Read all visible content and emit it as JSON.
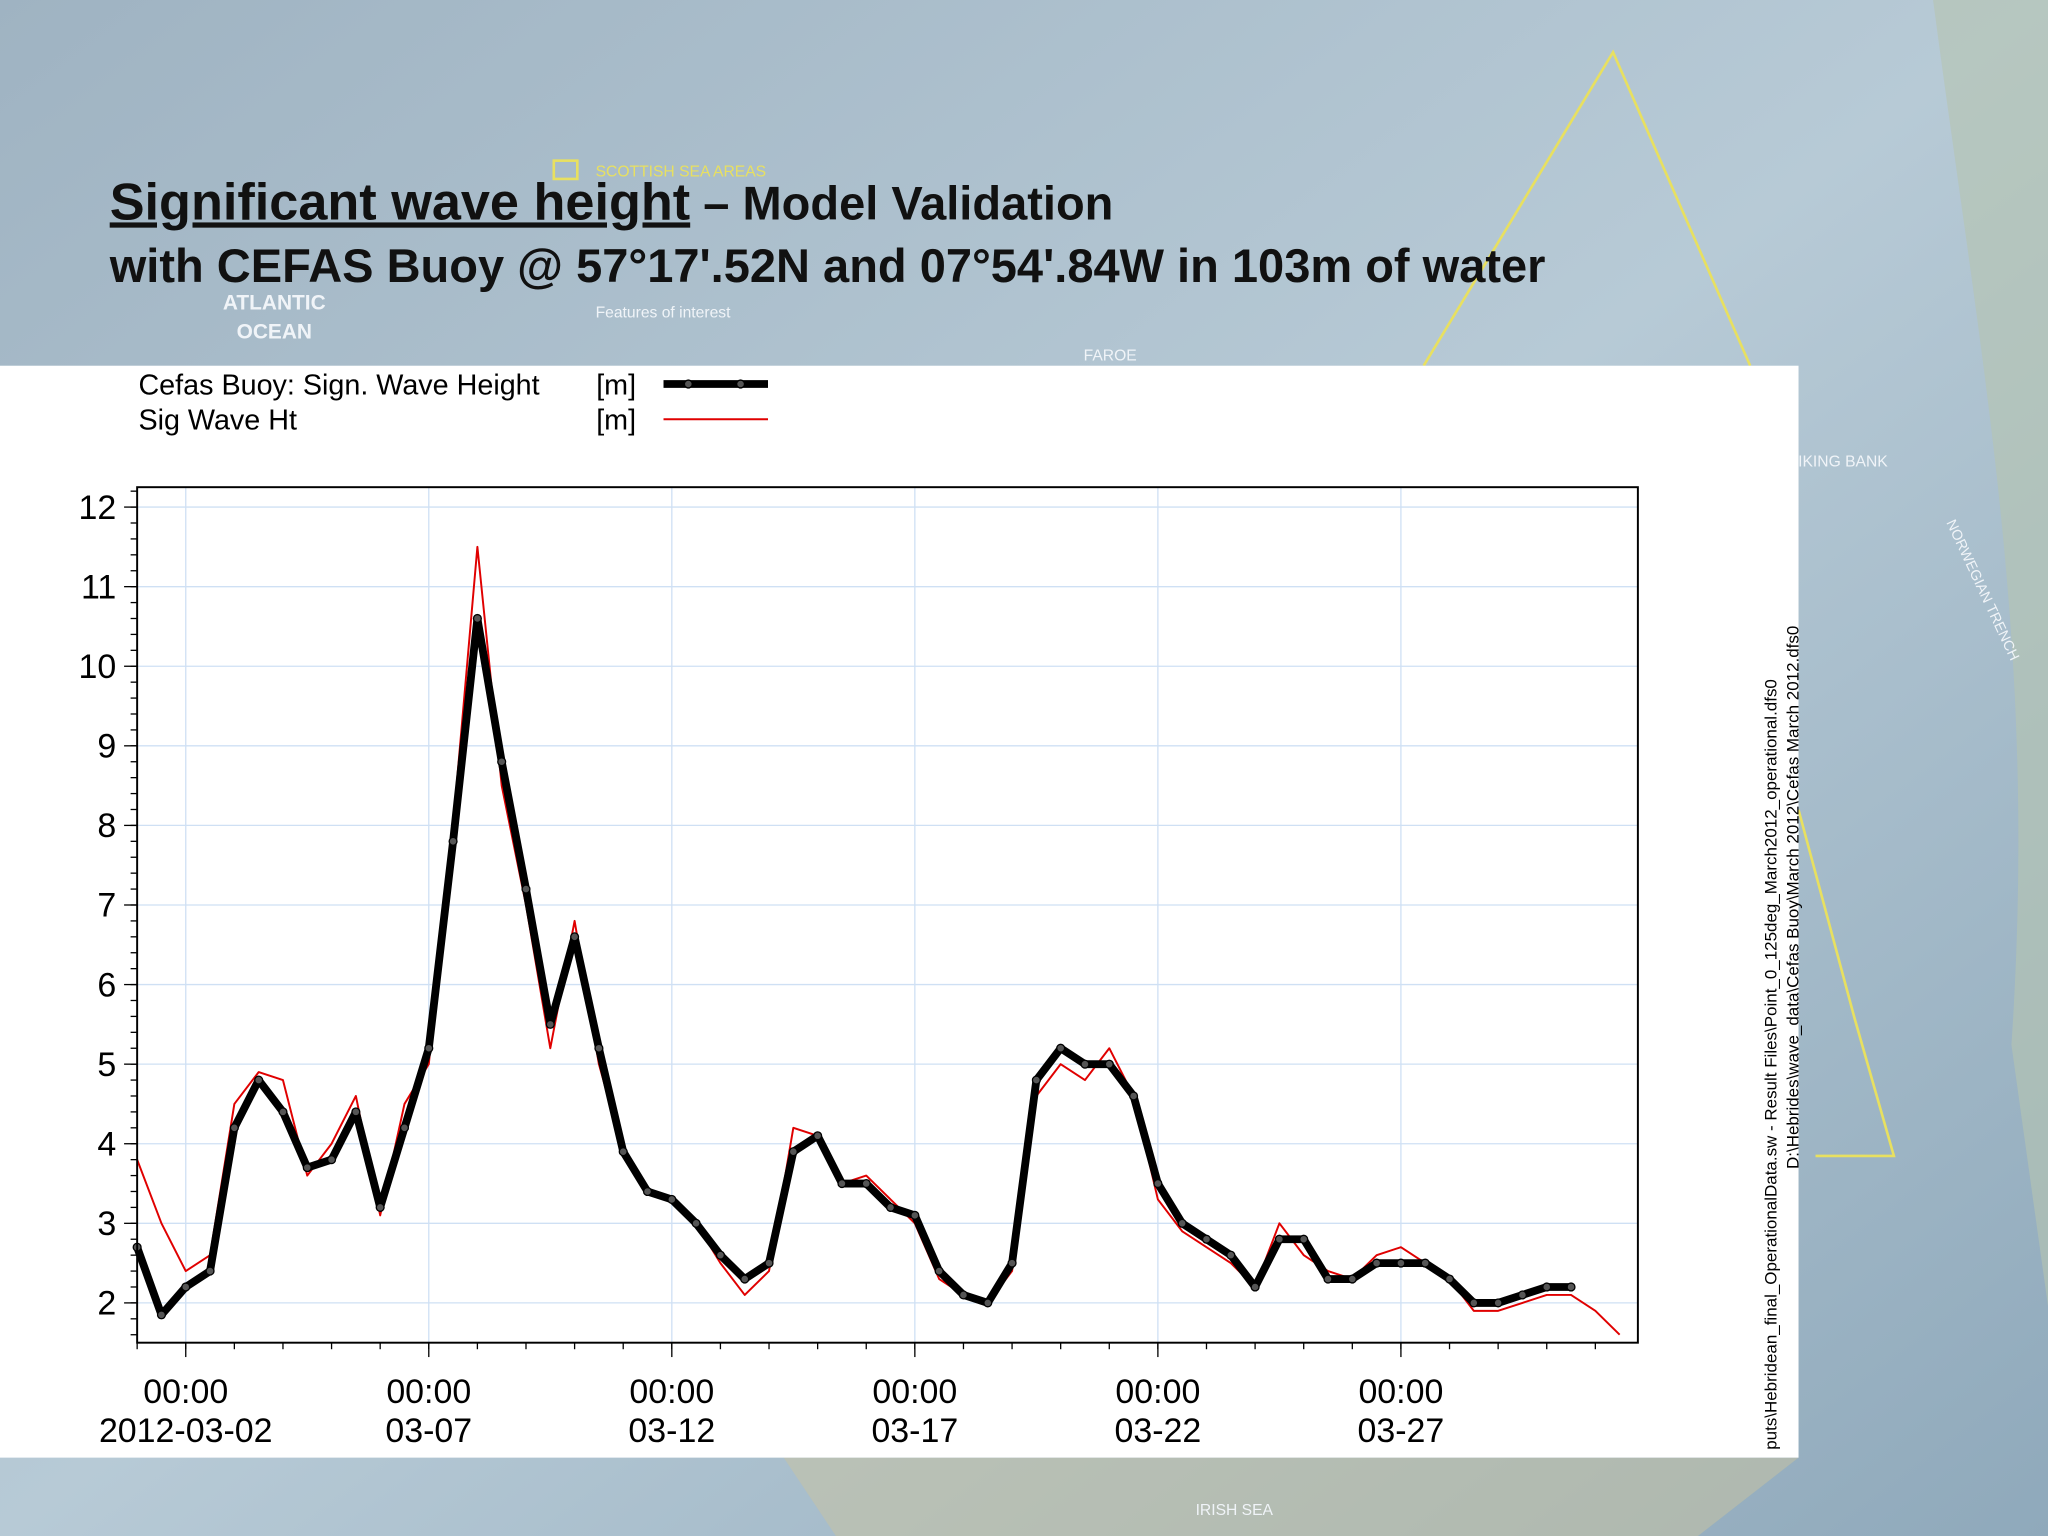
{
  "title": {
    "underlined": "Significant wave height",
    "rest": " – Model Validation",
    "line2": "with CEFAS Buoy @ 57°17'.52N and 07°54'.84W in 103m of water"
  },
  "map_labels": [
    "SCOTTISH SEA AREAS",
    "Features of interest",
    "ATLANTIC",
    "OCEAN",
    "FAROE",
    "VIKING BANK",
    "NORWEGIAN TRENCH",
    "IRISH SEA"
  ],
  "file_paths": [
    "puts\\Hebridean_final_OperationalData.sw - Result Files\\Point_0_125deg_March2012_operational.dfs0",
    "D:\\Hebrides\\wave_data\\Cefas Buoy\\March 2012\\Cefas March 2012.dfs0"
  ],
  "chart_data": {
    "type": "line",
    "x": [
      "2012-03-01 00:00",
      "2012-03-01 12:00",
      "2012-03-02 00:00",
      "2012-03-02 12:00",
      "2012-03-03 00:00",
      "2012-03-03 12:00",
      "2012-03-04 00:00",
      "2012-03-04 12:00",
      "2012-03-05 00:00",
      "2012-03-05 12:00",
      "2012-03-06 00:00",
      "2012-03-06 12:00",
      "2012-03-07 00:00",
      "2012-03-07 12:00",
      "2012-03-08 00:00",
      "2012-03-08 12:00",
      "2012-03-09 00:00",
      "2012-03-09 12:00",
      "2012-03-10 00:00",
      "2012-03-10 12:00",
      "2012-03-11 00:00",
      "2012-03-11 12:00",
      "2012-03-12 00:00",
      "2012-03-12 12:00",
      "2012-03-13 00:00",
      "2012-03-13 12:00",
      "2012-03-14 00:00",
      "2012-03-14 12:00",
      "2012-03-15 00:00",
      "2012-03-15 12:00",
      "2012-03-16 00:00",
      "2012-03-16 12:00",
      "2012-03-17 00:00",
      "2012-03-17 12:00",
      "2012-03-18 00:00",
      "2012-03-18 12:00",
      "2012-03-19 00:00",
      "2012-03-19 12:00",
      "2012-03-20 00:00",
      "2012-03-20 12:00",
      "2012-03-21 00:00",
      "2012-03-21 12:00",
      "2012-03-22 00:00",
      "2012-03-22 12:00",
      "2012-03-23 00:00",
      "2012-03-23 12:00",
      "2012-03-24 00:00",
      "2012-03-24 12:00",
      "2012-03-25 00:00",
      "2012-03-25 12:00",
      "2012-03-26 00:00",
      "2012-03-26 12:00",
      "2012-03-27 00:00",
      "2012-03-27 12:00",
      "2012-03-28 00:00",
      "2012-03-28 12:00",
      "2012-03-29 00:00",
      "2012-03-29 12:00",
      "2012-03-30 00:00",
      "2012-03-30 12:00",
      "2012-03-31 00:00",
      "2012-03-31 12:00"
    ],
    "series": [
      {
        "name": "Cefas Buoy: Sign. Wave Height",
        "unit": "[m]",
        "color": "#000000",
        "values": [
          2.7,
          1.85,
          2.2,
          2.4,
          4.2,
          4.8,
          4.4,
          3.7,
          3.8,
          4.4,
          3.2,
          4.2,
          5.2,
          7.8,
          10.6,
          8.8,
          7.2,
          5.5,
          6.6,
          5.2,
          3.9,
          3.4,
          3.3,
          3.0,
          2.6,
          2.3,
          2.5,
          3.9,
          4.1,
          3.5,
          3.5,
          3.2,
          3.1,
          2.4,
          2.1,
          2.0,
          2.5,
          4.8,
          5.2,
          5.0,
          5.0,
          4.6,
          3.5,
          3.0,
          2.8,
          2.6,
          2.2,
          2.8,
          2.8,
          2.3,
          2.3,
          2.5,
          2.5,
          2.5,
          2.3,
          2.0,
          2.0,
          2.1,
          2.2,
          2.2,
          null,
          null
        ]
      },
      {
        "name": "Sig Wave Ht",
        "unit": "[m]",
        "color": "#e00000",
        "values": [
          3.8,
          3.0,
          2.4,
          2.6,
          4.5,
          4.9,
          4.8,
          3.6,
          4.0,
          4.6,
          3.1,
          4.5,
          5.0,
          8.0,
          11.5,
          8.5,
          7.0,
          5.2,
          6.8,
          5.0,
          3.9,
          3.4,
          3.3,
          3.0,
          2.5,
          2.1,
          2.4,
          4.2,
          4.1,
          3.5,
          3.6,
          3.3,
          3.0,
          2.3,
          2.1,
          2.0,
          2.4,
          4.6,
          5.0,
          4.8,
          5.2,
          4.6,
          3.3,
          2.9,
          2.7,
          2.5,
          2.2,
          3.0,
          2.6,
          2.4,
          2.3,
          2.6,
          2.7,
          2.5,
          2.3,
          1.9,
          1.9,
          2.0,
          2.1,
          2.1,
          1.9,
          1.6
        ]
      }
    ],
    "xlim": [
      "2012-03-01 00:00",
      "2012-03-31 21:00"
    ],
    "xticks": [
      {
        "value": "2012-03-02 00:00",
        "label": "00:00 2012-03-02"
      },
      {
        "value": "2012-03-07 00:00",
        "label": "00:00 03-07"
      },
      {
        "value": "2012-03-12 00:00",
        "label": "00:00 03-12"
      },
      {
        "value": "2012-03-17 00:00",
        "label": "00:00 03-17"
      },
      {
        "value": "2012-03-22 00:00",
        "label": "00:00 03-22"
      },
      {
        "value": "2012-03-27 00:00",
        "label": "00:00 03-27"
      }
    ],
    "ylim": [
      1.5,
      12.25
    ],
    "yticks": [
      2,
      3,
      4,
      5,
      6,
      7,
      8,
      9,
      10,
      11,
      12
    ],
    "grid": true
  }
}
